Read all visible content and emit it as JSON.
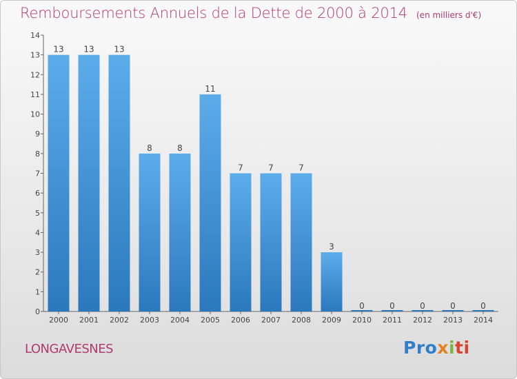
{
  "title": "Remboursements Annuels de la Dette de 2000 à 2014",
  "unit": "(en milliers d'€)",
  "commune": "LONGAVESNES",
  "logo": {
    "p1": "Pro",
    "p2": "x",
    "p3": "i",
    "p4": "ti"
  },
  "colors": {
    "bar_top": "#5dacea",
    "bar_bottom": "#2b78bd",
    "title": "#b03a6e"
  },
  "chart_data": {
    "type": "bar",
    "categories": [
      "2000",
      "2001",
      "2002",
      "2003",
      "2004",
      "2005",
      "2006",
      "2007",
      "2008",
      "2009",
      "2010",
      "2011",
      "2012",
      "2013",
      "2014"
    ],
    "values": [
      13,
      13,
      13,
      8,
      8,
      11,
      7,
      7,
      7,
      3,
      0,
      0,
      0,
      0,
      0
    ],
    "ylim": [
      0,
      14
    ],
    "yticks": [
      0,
      1,
      2,
      3,
      4,
      5,
      6,
      7,
      8,
      9,
      10,
      11,
      12,
      13,
      14
    ]
  }
}
